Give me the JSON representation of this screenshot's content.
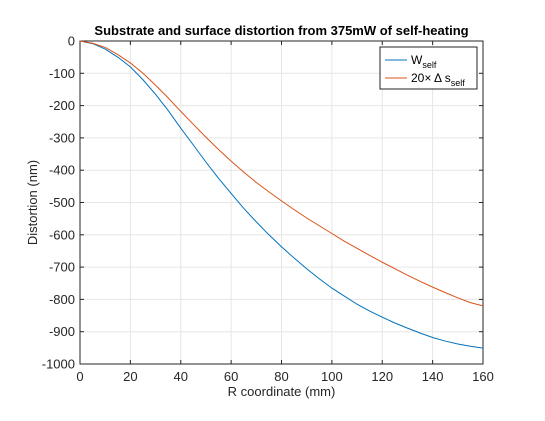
{
  "chart_data": {
    "type": "line",
    "title": "Substrate and surface distortion from 375mW of self-heating",
    "xlabel": "R coordinate (mm)",
    "ylabel": "Distortion (nm)",
    "xlim": [
      0,
      160
    ],
    "ylim": [
      -1000,
      0
    ],
    "xticks": [
      0,
      20,
      40,
      60,
      80,
      100,
      120,
      140,
      160
    ],
    "yticks": [
      0,
      -100,
      -200,
      -300,
      -400,
      -500,
      -600,
      -700,
      -800,
      -900,
      -1000
    ],
    "grid": true,
    "legend_position": "top-right",
    "series": [
      {
        "legend_main": "W",
        "legend_sub": "self",
        "color": "#0072BD",
        "x": [
          0,
          5,
          10,
          15,
          20,
          25,
          30,
          35,
          40,
          45,
          50,
          55,
          60,
          65,
          70,
          75,
          80,
          85,
          90,
          95,
          100,
          105,
          110,
          115,
          120,
          125,
          130,
          135,
          140,
          145,
          150,
          155,
          160
        ],
        "y": [
          0,
          -8,
          -25,
          -50,
          -80,
          -120,
          -165,
          -215,
          -270,
          -322,
          -375,
          -425,
          -472,
          -518,
          -560,
          -600,
          -637,
          -672,
          -705,
          -736,
          -765,
          -790,
          -815,
          -836,
          -855,
          -873,
          -889,
          -904,
          -918,
          -929,
          -938,
          -945,
          -951
        ]
      },
      {
        "legend_main": "20× Δ s",
        "legend_sub": "self",
        "color": "#D95319",
        "x": [
          0,
          5,
          10,
          15,
          20,
          25,
          30,
          35,
          40,
          45,
          50,
          55,
          60,
          65,
          70,
          75,
          80,
          85,
          90,
          95,
          100,
          105,
          110,
          115,
          120,
          125,
          130,
          135,
          140,
          145,
          150,
          155,
          160
        ],
        "y": [
          0,
          -7,
          -20,
          -42,
          -68,
          -100,
          -137,
          -176,
          -218,
          -258,
          -298,
          -336,
          -372,
          -406,
          -438,
          -467,
          -495,
          -522,
          -548,
          -572,
          -596,
          -620,
          -642,
          -664,
          -685,
          -705,
          -725,
          -744,
          -762,
          -779,
          -795,
          -810,
          -820
        ]
      }
    ]
  }
}
